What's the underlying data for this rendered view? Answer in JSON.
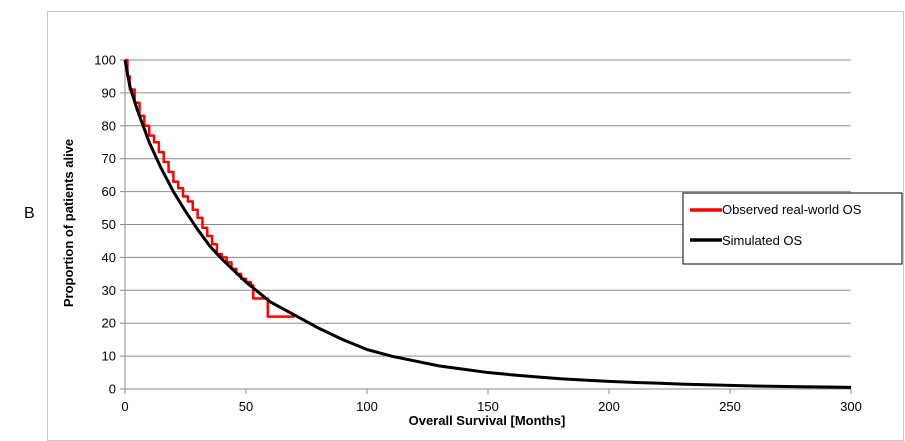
{
  "panel_label": "B",
  "chart_data": {
    "type": "line",
    "title": "",
    "xlabel": "Overall Survival [Months]",
    "ylabel": "Proportion of patients alive",
    "xlim": [
      0,
      300
    ],
    "ylim": [
      0,
      100
    ],
    "xticks": [
      0,
      50,
      100,
      150,
      200,
      250,
      300
    ],
    "yticks": [
      0,
      10,
      20,
      30,
      40,
      50,
      60,
      70,
      80,
      90,
      100
    ],
    "grid": "horizontal",
    "legend_position": "right",
    "series": [
      {
        "name": "Observed real-world OS",
        "color": "#ff0000",
        "x": [
          0,
          1,
          2,
          4,
          6,
          8,
          10,
          12,
          14,
          16,
          18,
          20,
          22,
          24,
          26,
          28,
          30,
          32,
          34,
          36,
          38,
          40,
          42,
          44,
          46,
          48,
          50,
          52,
          53,
          54,
          56,
          58,
          59,
          60,
          62,
          64,
          66,
          70
        ],
        "y": [
          100,
          95,
          91,
          87,
          83,
          80,
          77,
          75,
          72,
          69,
          66,
          63,
          61,
          58.5,
          57,
          54.5,
          52,
          49,
          46.5,
          44,
          41,
          40,
          38.5,
          36.5,
          35,
          33.5,
          32.5,
          31.5,
          27.5,
          27.5,
          27.5,
          27.5,
          22,
          22,
          22,
          22,
          22,
          22
        ]
      },
      {
        "name": "Simulated OS",
        "color": "#000000",
        "x": [
          0,
          2,
          5,
          10,
          15,
          20,
          25,
          30,
          35,
          40,
          45,
          50,
          55,
          60,
          65,
          70,
          80,
          90,
          100,
          110,
          120,
          130,
          140,
          150,
          160,
          170,
          180,
          190,
          200,
          210,
          220,
          230,
          240,
          250,
          260,
          270,
          280,
          290,
          300
        ],
        "y": [
          100,
          92,
          85,
          75,
          67,
          60,
          54,
          48.5,
          43.5,
          39.5,
          36,
          32.5,
          29.5,
          26.5,
          24.5,
          22.5,
          18.5,
          15,
          12,
          10,
          8.5,
          7,
          6,
          5,
          4.3,
          3.7,
          3.1,
          2.7,
          2.3,
          2.0,
          1.8,
          1.5,
          1.3,
          1.1,
          0.9,
          0.8,
          0.7,
          0.6,
          0.5
        ]
      }
    ]
  }
}
